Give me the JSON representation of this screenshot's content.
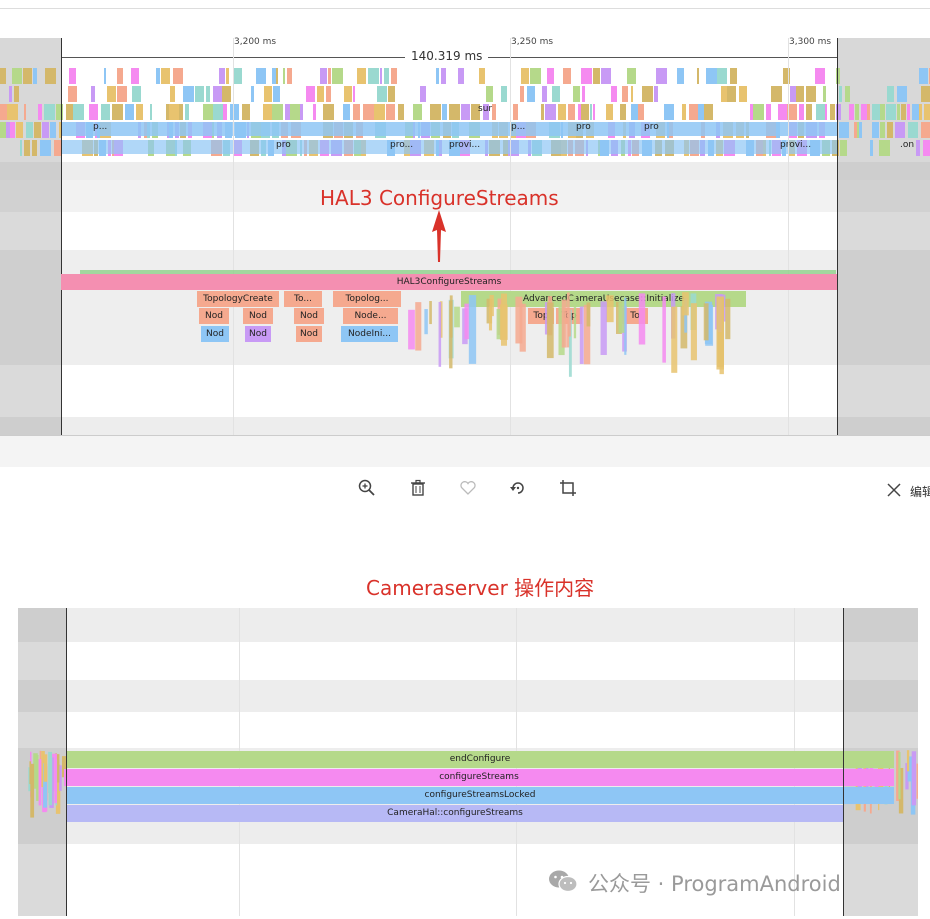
{
  "top_trace": {
    "ticks": [
      "3,200 ms",
      "3,250 ms",
      "3,300 ms"
    ],
    "duration_label": "140.319 ms",
    "mini_labels": [
      "p...",
      "pro",
      "pro...",
      "provi...",
      "sur",
      "p...",
      "pro",
      "pro",
      "provi...",
      ".on"
    ],
    "main_slice": "HAL3ConfigureStreams",
    "slices_row2": [
      "TopologyCreate",
      "To...",
      "Topolog...",
      "AdvancedCameraUsecase::Initialize"
    ],
    "slices_row3": [
      "Nod",
      "Nod",
      "Nod",
      "Node...",
      "Top",
      "Top",
      "To"
    ],
    "slices_row4": [
      "Nod",
      "Nod",
      "Nod",
      "NodeIni..."
    ]
  },
  "annotation_top": "HAL3 ConfigureStreams",
  "toolbar": {
    "zoom_icon": "zoom-in-icon",
    "delete_icon": "trash-icon",
    "favorite_icon": "heart-icon",
    "rotate_icon": "rotate-icon",
    "crop_icon": "crop-icon",
    "edit_label": "编辑"
  },
  "annotation_bottom": "Cameraserver 操作内容",
  "bottom_trace": {
    "slices": [
      "endConfigure",
      "configureStreams",
      "configureStreamsLocked",
      "CameraHal::configureStreams"
    ]
  },
  "watermark": {
    "text": "公众号 · ProgramAndroid",
    "icon": "wechat-icon"
  },
  "colors": {
    "annotation_red": "#d9322a",
    "slice_pink": "#f48fb1",
    "slice_green": "#b5d98a",
    "slice_magenta": "#f58af0",
    "slice_blue": "#8ec6f5",
    "slice_lavender": "#b7b9f5"
  }
}
